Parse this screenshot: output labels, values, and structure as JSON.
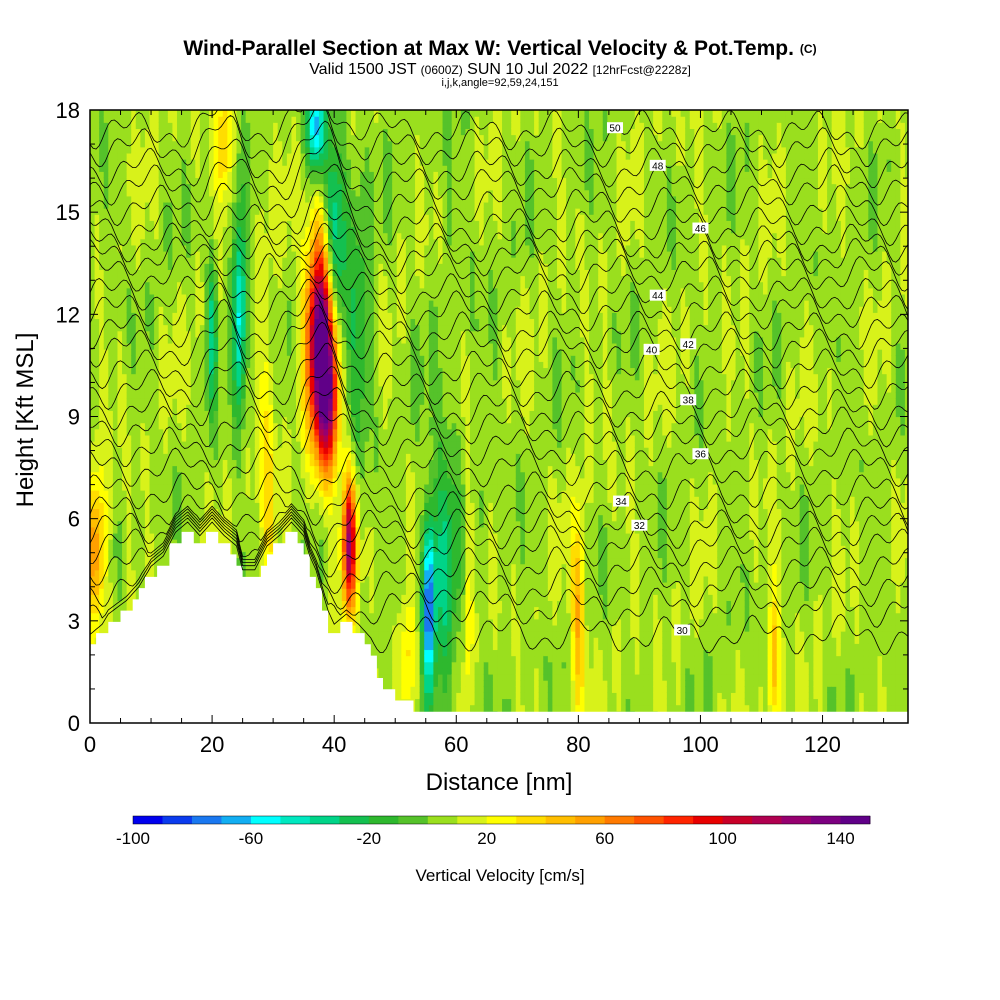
{
  "header": {
    "title": "Wind-Parallel Section at Max W: Vertical Velocity & Pot.Temp.",
    "copyright": "(C)",
    "valid_prefix": "Valid 1500 JST",
    "valid_utc": "(0600Z)",
    "valid_date": "SUN 10 Jul 2022",
    "forecast": "[12hrFcst@2228z]",
    "indices": "i,j,k,angle=92,59,24,151"
  },
  "chart_data": {
    "type": "heatmap",
    "title": "Wind-Parallel Section at Max W: Vertical Velocity & Pot.Temp.",
    "xlabel": "Distance [nm]",
    "ylabel": "Height [Kft MSL]",
    "xlim": [
      0,
      134
    ],
    "ylim": [
      0,
      18
    ],
    "x_ticks": [
      "0",
      "20",
      "40",
      "60",
      "80",
      "100",
      "120"
    ],
    "y_ticks": [
      "0",
      "3",
      "6",
      "9",
      "12",
      "15",
      "18"
    ],
    "colorbar": {
      "title": "Vertical Velocity [cm/s]",
      "min": -100,
      "max": 150,
      "step": 10,
      "tick_labels": [
        "-100",
        "-60",
        "-20",
        "20",
        "60",
        "100",
        "140"
      ],
      "colors": [
        "#0000ee",
        "#0b3bee",
        "#1a78f0",
        "#12aef2",
        "#00ffff",
        "#00e8c0",
        "#00d488",
        "#14c050",
        "#2eb82e",
        "#55c22a",
        "#9adf1e",
        "#d8f21a",
        "#ffff00",
        "#ffdd00",
        "#ffbe00",
        "#ffa000",
        "#ff7a00",
        "#ff5200",
        "#ff2400",
        "#e80000",
        "#c80028",
        "#b00050",
        "#960070",
        "#7c0080",
        "#600088"
      ]
    },
    "terrain_kft": [
      [
        0,
        2.3
      ],
      [
        2,
        2.6
      ],
      [
        3,
        2.9
      ],
      [
        6,
        3.3
      ],
      [
        8,
        3.7
      ],
      [
        10,
        4.3
      ],
      [
        12,
        4.6
      ],
      [
        14,
        5.3
      ],
      [
        16,
        5.6
      ],
      [
        18,
        5.2
      ],
      [
        20,
        5.6
      ],
      [
        22,
        5.2
      ],
      [
        24,
        4.9
      ],
      [
        25,
        4.2
      ],
      [
        27,
        4.2
      ],
      [
        29,
        4.9
      ],
      [
        31,
        5.2
      ],
      [
        33,
        5.6
      ],
      [
        35,
        5.2
      ],
      [
        36,
        4.6
      ],
      [
        37,
        4.2
      ],
      [
        38,
        3.6
      ],
      [
        39,
        3.0
      ],
      [
        40,
        2.6
      ],
      [
        42,
        2.9
      ],
      [
        44,
        2.6
      ],
      [
        46,
        2.2
      ],
      [
        47,
        1.6
      ],
      [
        48,
        1.3
      ],
      [
        49,
        1.0
      ],
      [
        51,
        0.7
      ],
      [
        53,
        0.5
      ],
      [
        56,
        0.3
      ],
      [
        60,
        0.3
      ],
      [
        134,
        0.3
      ]
    ],
    "updrafts": [
      {
        "x": 38,
        "y": 11.5,
        "sx": 1.7,
        "sy": 2.2,
        "w": 145
      },
      {
        "x": 39,
        "y": 9.5,
        "sx": 1.3,
        "sy": 1.6,
        "w": 80
      },
      {
        "x": 42.5,
        "y": 5.3,
        "sx": 0.8,
        "sy": 1.4,
        "w": 110
      },
      {
        "x": 1,
        "y": 5.0,
        "sx": 1.2,
        "sy": 1.5,
        "w": 55
      },
      {
        "x": 22,
        "y": 17,
        "sx": 1.0,
        "sy": 1.2,
        "w": 35
      },
      {
        "x": 80,
        "y": 3.2,
        "sx": 0.8,
        "sy": 2.0,
        "w": 45
      },
      {
        "x": 112,
        "y": 1.8,
        "sx": 0.7,
        "sy": 1.5,
        "w": 40
      },
      {
        "x": 29,
        "y": 7,
        "sx": 1.0,
        "sy": 3.5,
        "w": 25
      },
      {
        "x": 52,
        "y": 2.0,
        "sx": 1.0,
        "sy": 1.3,
        "w": 30
      },
      {
        "x": 62,
        "y": 3.5,
        "sx": 0.6,
        "sy": 2.5,
        "w": 25
      }
    ],
    "downdrafts": [
      {
        "x": 40,
        "y": 13.5,
        "sx": 1.3,
        "sy": 2.5,
        "w": -70
      },
      {
        "x": 37,
        "y": 17.5,
        "sx": 1.0,
        "sy": 1.0,
        "w": -75
      },
      {
        "x": 24.5,
        "y": 12,
        "sx": 0.8,
        "sy": 2.0,
        "w": -65
      },
      {
        "x": 55.5,
        "y": 3.5,
        "sx": 0.7,
        "sy": 1.8,
        "w": -85
      },
      {
        "x": 20,
        "y": 11.5,
        "sx": 0.6,
        "sy": 1.5,
        "w": -40
      },
      {
        "x": 58,
        "y": 4.5,
        "sx": 1.3,
        "sy": 3.0,
        "w": -30
      },
      {
        "x": 44,
        "y": 12,
        "sx": 1.5,
        "sy": 3.0,
        "w": -25
      }
    ],
    "theta_contours": [
      {
        "level": 30,
        "label": "30",
        "h": 2.6,
        "label_x": 97
      },
      {
        "level": 32,
        "label": "32",
        "h": 5.2,
        "label_x": 90
      },
      {
        "level": 34,
        "label": "34",
        "h": 6.2,
        "label_x": 87
      },
      {
        "level": 36,
        "label": "36",
        "h": 7.5,
        "label_x": 100
      },
      {
        "level": 38,
        "label": "38",
        "h": 9.2,
        "label_x": 98
      },
      {
        "level": 40,
        "label": "40",
        "h": 10.4,
        "label_x": 92
      },
      {
        "level": 42,
        "label": "42",
        "h": 11.5,
        "label_x": 98
      },
      {
        "level": 44,
        "label": "44",
        "h": 12.6,
        "label_x": 93
      },
      {
        "level": 46,
        "label": "46",
        "h": 14.1,
        "label_x": 100
      },
      {
        "level": 48,
        "label": "48",
        "h": 15.8,
        "label_x": 93
      },
      {
        "level": 50,
        "label": "50",
        "h": 17.4,
        "label_x": 86
      }
    ]
  }
}
